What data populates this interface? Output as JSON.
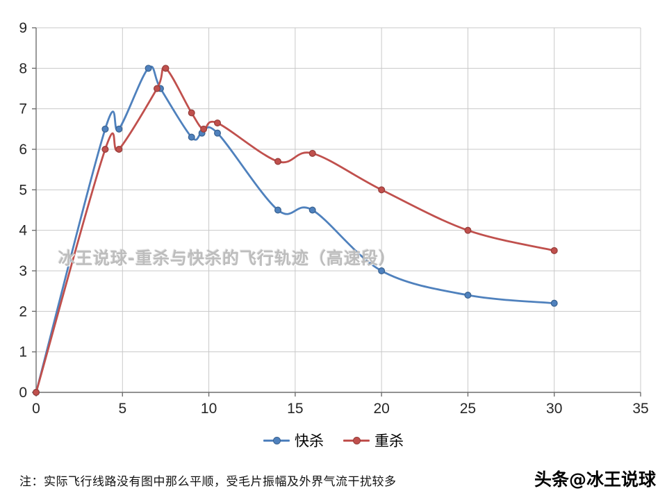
{
  "chart_data": {
    "type": "line",
    "title": "",
    "watermark": "冰王说球-重杀与快杀的飞行轨迹（高速段）",
    "xlim": [
      0,
      35
    ],
    "ylim": [
      0,
      9
    ],
    "x_ticks": [
      0,
      5,
      10,
      15,
      20,
      25,
      30,
      35
    ],
    "y_ticks": [
      0,
      1,
      2,
      3,
      4,
      5,
      6,
      7,
      8,
      9
    ],
    "grid": true,
    "legend_position": "bottom",
    "grid_color": "#c9c9c9",
    "axis_color": "#6e6e6e",
    "tick_label_color": "#262626",
    "series": [
      {
        "name": "快杀",
        "color": "#4F81BD",
        "marker_stroke": "#38618f",
        "x": [
          0,
          4,
          4.8,
          6.5,
          7.2,
          9,
          9.6,
          10.5,
          14,
          16,
          20,
          25,
          30
        ],
        "y": [
          0,
          6.5,
          6.5,
          8.0,
          7.5,
          6.3,
          6.4,
          6.4,
          4.5,
          4.5,
          3.0,
          2.4,
          2.2
        ]
      },
      {
        "name": "重杀",
        "color": "#C0504D",
        "marker_stroke": "#943c39",
        "x": [
          0,
          4,
          4.8,
          7,
          7.5,
          9,
          9.7,
          10.5,
          14,
          16,
          20,
          25,
          30
        ],
        "y": [
          0,
          6.0,
          6.0,
          7.5,
          8.0,
          6.9,
          6.5,
          6.65,
          5.7,
          5.9,
          5.0,
          4.0,
          3.5
        ]
      }
    ]
  },
  "footer": {
    "note": "注：实际飞行线路没有图中那么平顺，受毛片振幅及外界气流干扰较多",
    "brand": "头条@冰王说球"
  }
}
